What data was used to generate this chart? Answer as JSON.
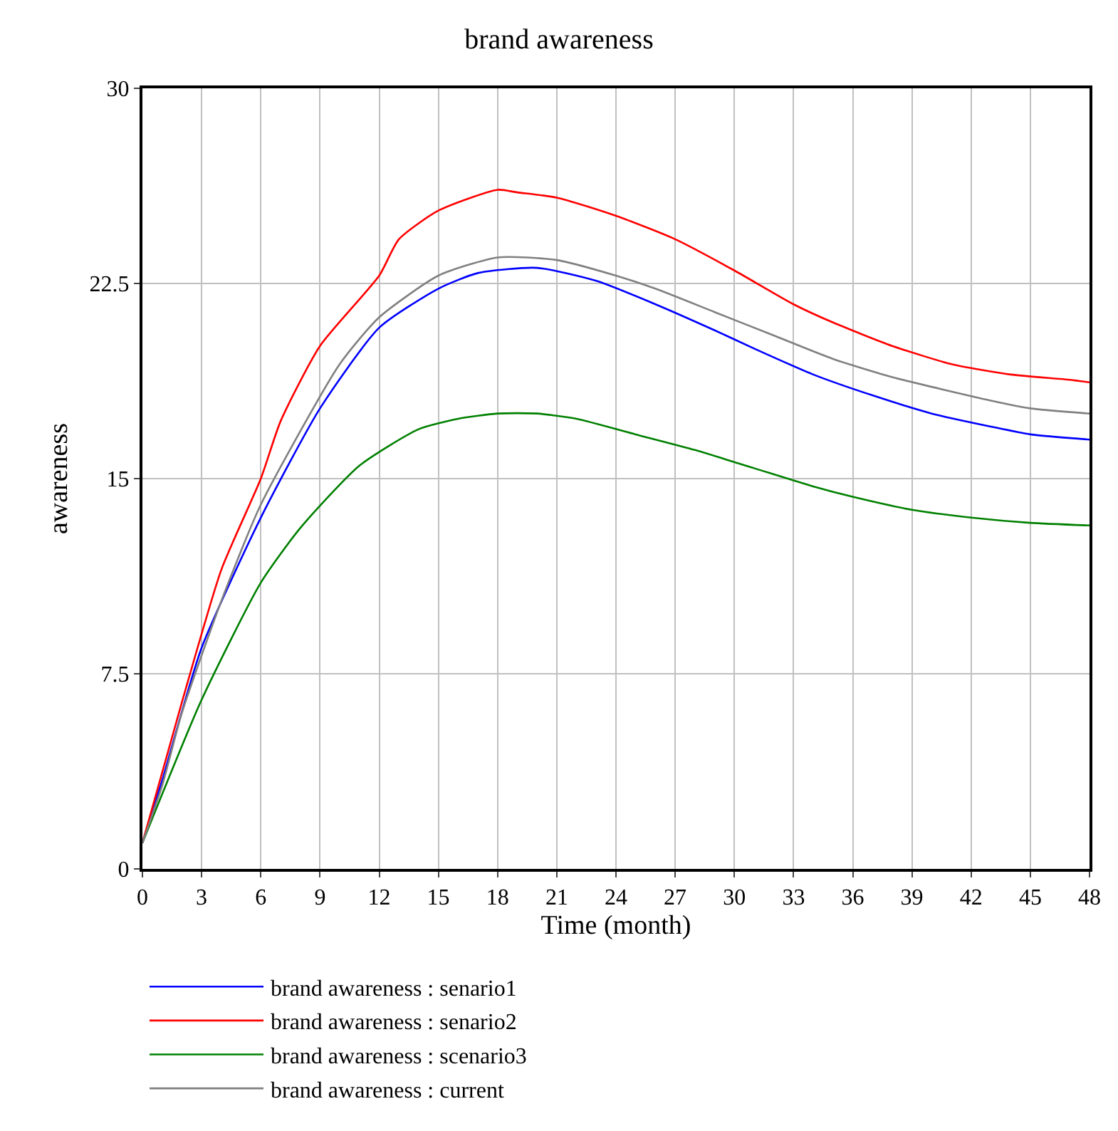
{
  "chart_data": {
    "type": "line",
    "title": "brand awareness",
    "xlabel": "Time (month)",
    "ylabel": "awareness",
    "xlim": [
      0,
      48
    ],
    "xticks": [
      0,
      3,
      6,
      9,
      12,
      15,
      18,
      21,
      24,
      27,
      30,
      33,
      36,
      39,
      42,
      45,
      48
    ],
    "ylim": [
      0,
      30
    ],
    "yticks": [
      0,
      7.5,
      15,
      22.5,
      30
    ],
    "grid": true,
    "legend": "bottom",
    "marker": "none",
    "line_style": "solid",
    "series": [
      {
        "name": "brand awareness : senario1",
        "color": "#0000ff",
        "x": [
          0,
          1,
          3,
          6,
          9,
          12,
          15,
          17,
          20,
          23,
          26,
          29,
          31,
          34,
          37,
          40,
          43,
          45,
          48
        ],
        "values": [
          1,
          3.4,
          8.5,
          13.5,
          17.7,
          20.8,
          22.3,
          22.9,
          23.1,
          22.6,
          21.7,
          20.7,
          20.0,
          19.0,
          18.2,
          17.5,
          17.0,
          16.7,
          16.5
        ]
      },
      {
        "name": "brand awareness : senario2",
        "color": "#ff0000",
        "x": [
          0,
          2,
          4,
          6,
          7,
          9,
          12,
          13,
          15,
          18,
          19,
          21,
          24,
          27,
          30,
          33,
          35,
          38,
          41,
          44,
          47,
          48
        ],
        "values": [
          1,
          6.4,
          11.5,
          15.0,
          17.2,
          20.1,
          22.8,
          24.2,
          25.3,
          26.1,
          26.0,
          25.8,
          25.1,
          24.2,
          23.0,
          21.7,
          21.0,
          20.1,
          19.4,
          19.0,
          18.8,
          18.7
        ]
      },
      {
        "name": "brand awareness : scenario3",
        "color": "#008000",
        "x": [
          0,
          3,
          6,
          8,
          11,
          14,
          16,
          18,
          20,
          22,
          25,
          28,
          31,
          34,
          36,
          39,
          42,
          45,
          48
        ],
        "values": [
          1,
          6.5,
          11.0,
          13.1,
          15.5,
          16.9,
          17.3,
          17.5,
          17.5,
          17.3,
          16.7,
          16.1,
          15.4,
          14.7,
          14.3,
          13.8,
          13.5,
          13.3,
          13.2
        ]
      },
      {
        "name": "brand awareness : current",
        "color": "#808080",
        "x": [
          0,
          1,
          2,
          4,
          6,
          10,
          12,
          15,
          18,
          21,
          24,
          26,
          29,
          32,
          35,
          38,
          43,
          45,
          48
        ],
        "values": [
          1,
          3.2,
          6.0,
          10.3,
          14.0,
          19.4,
          21.2,
          22.8,
          23.5,
          23.4,
          22.8,
          22.3,
          21.4,
          20.5,
          19.6,
          18.9,
          18.0,
          17.7,
          17.5
        ]
      }
    ]
  }
}
